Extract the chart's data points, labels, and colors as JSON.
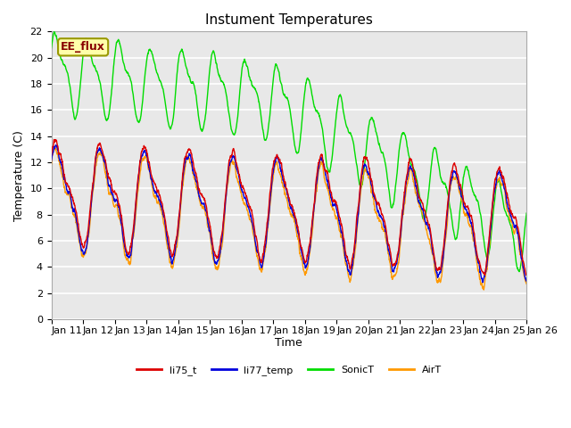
{
  "title": "Instument Temperatures",
  "xlabel": "Time",
  "ylabel": "Temperature (C)",
  "ylim": [
    0,
    22
  ],
  "xtick_labels": [
    "Jan 11",
    "Jan 12",
    "Jan 13",
    "Jan 14",
    "Jan 15",
    "Jan 16",
    "Jan 17",
    "Jan 18",
    "Jan 19",
    "Jan 20",
    "Jan 21",
    "Jan 22",
    "Jan 23",
    "Jan 24",
    "Jan 25",
    "Jan 26"
  ],
  "bg_color": "#e8e8e8",
  "colors": {
    "li75_t": "#dd0000",
    "li77_temp": "#0000dd",
    "SonicT": "#00dd00",
    "AirT": "#ff9900"
  },
  "annotation_text": "EE_flux",
  "annotation_bg": "#ffffaa",
  "annotation_border": "#999900",
  "title_fontsize": 11,
  "axis_fontsize": 9,
  "tick_fontsize": 8,
  "linewidth": 1.0
}
